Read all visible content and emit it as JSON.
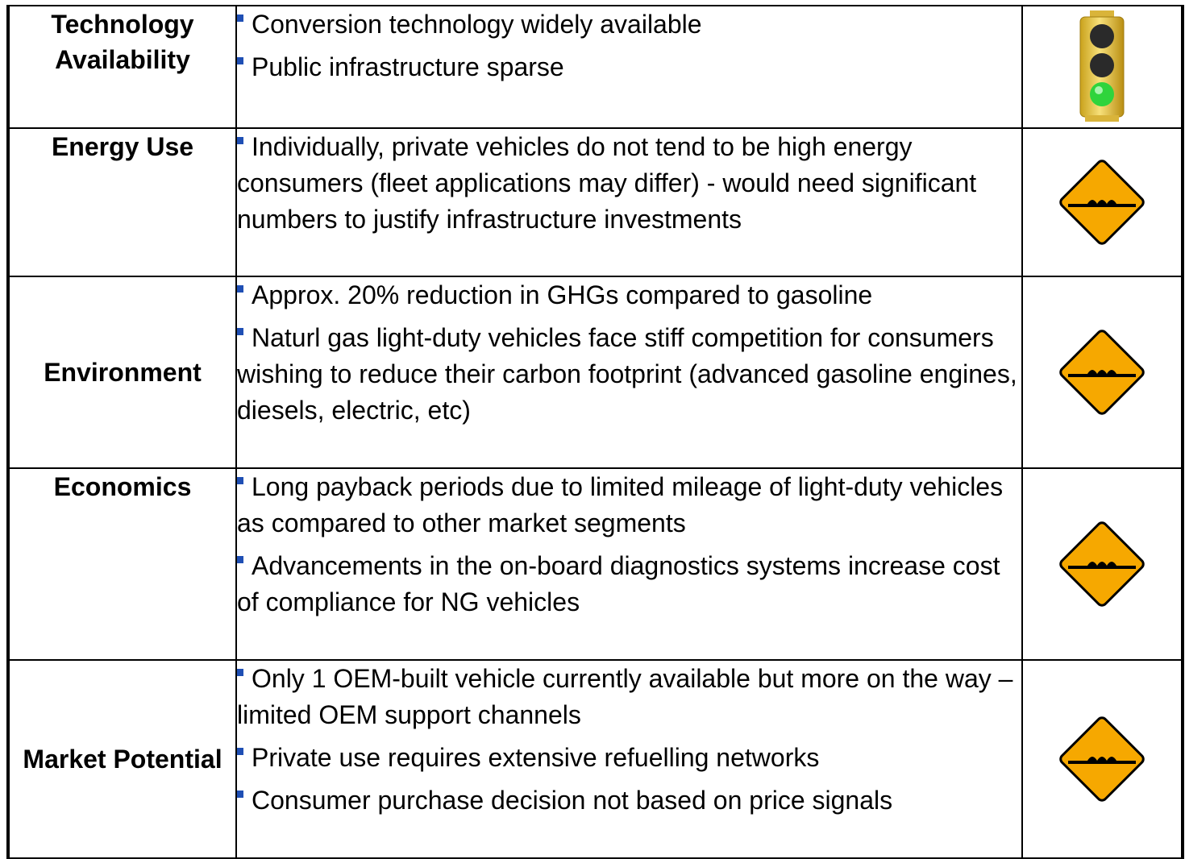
{
  "rows": [
    {
      "label": "Technology Availability",
      "bullets": [
        "Conversion technology widely available",
        "Public infrastructure sparse"
      ]
    },
    {
      "label": "Energy Use",
      "bullets": [
        "Individually, private vehicles do not tend to be high energy consumers (fleet applications may differ) - would need significant numbers to justify infrastructure investments"
      ]
    },
    {
      "label": "Environment",
      "bullets": [
        "Approx. 20% reduction in GHGs compared to gasoline",
        "Naturl gas light-duty vehicles face stiff competition for consumers wishing to reduce their carbon footprint (advanced gasoline engines, diesels, electric, etc)"
      ]
    },
    {
      "label": "Economics",
      "bullets": [
        "Long payback periods due to limited mileage of light-duty vehicles as compared to other market segments",
        "Advancements in the on-board diagnostics systems increase cost of compliance for NG vehicles"
      ]
    },
    {
      "label": "Market Potential",
      "bullets": [
        "Only 1 OEM-built vehicle currently available but more on the way – limited OEM support channels",
        "Private use requires extensive refuelling networks",
        "Consumer purchase decision not based on price signals"
      ]
    }
  ]
}
